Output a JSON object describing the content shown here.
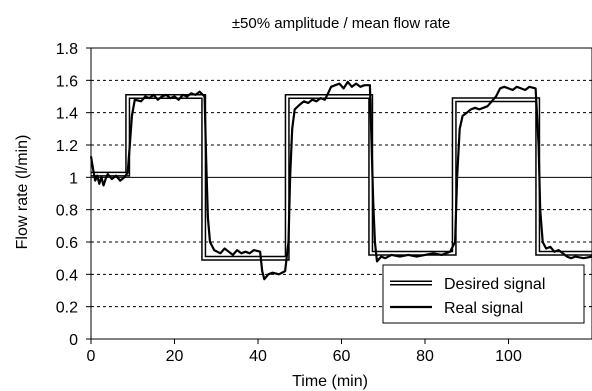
{
  "chart_data": {
    "type": "line",
    "title": "±50% amplitude / mean flow rate",
    "xlabel": "Time (min)",
    "ylabel": "Flow rate (l/min)",
    "xlim": [
      0,
      120
    ],
    "ylim": [
      0,
      1.8
    ],
    "x_ticks": [
      0,
      20,
      40,
      60,
      80,
      100
    ],
    "y_ticks": [
      0,
      0.2,
      0.4,
      0.6,
      0.8,
      1,
      1.2,
      1.4,
      1.6,
      1.8
    ],
    "x_tick_labels": [
      "0",
      "20",
      "40",
      "60",
      "80",
      "100"
    ],
    "y_tick_labels": [
      "0",
      "0.2",
      "0.4",
      "0.6",
      "0.8",
      "1",
      "1.2",
      "1.4",
      "1.6",
      "1.8"
    ],
    "grid": "horizontal dotted",
    "reference_line": 1.0,
    "legend_position": "bottom-right",
    "series": [
      {
        "name": "Desired signal",
        "style": "double-line",
        "color": "#000000",
        "points": [
          [
            0,
            1.02
          ],
          [
            8.8,
            1.02
          ],
          [
            8.8,
            1.5
          ],
          [
            27,
            1.5
          ],
          [
            27,
            0.5
          ],
          [
            47,
            0.5
          ],
          [
            47,
            1.5
          ],
          [
            67,
            1.5
          ],
          [
            67,
            0.53
          ],
          [
            87,
            0.53
          ],
          [
            87,
            1.48
          ],
          [
            107,
            1.48
          ],
          [
            107,
            0.53
          ],
          [
            120,
            0.53
          ]
        ]
      },
      {
        "name": "Real signal",
        "style": "solid",
        "color": "#000000",
        "points": [
          [
            0,
            1.13
          ],
          [
            0.5,
            1.05
          ],
          [
            1,
            0.98
          ],
          [
            1.5,
            1.01
          ],
          [
            2,
            0.96
          ],
          [
            2.5,
            1.0
          ],
          [
            3,
            0.95
          ],
          [
            3.5,
            0.99
          ],
          [
            4,
            1.02
          ],
          [
            5,
            0.99
          ],
          [
            6,
            1.01
          ],
          [
            7,
            0.98
          ],
          [
            8,
            1.0
          ],
          [
            8.8,
            1.03
          ],
          [
            9.3,
            1.2
          ],
          [
            9.8,
            1.38
          ],
          [
            10.5,
            1.48
          ],
          [
            12,
            1.47
          ],
          [
            13,
            1.5
          ],
          [
            14,
            1.49
          ],
          [
            15,
            1.51
          ],
          [
            16,
            1.48
          ],
          [
            17,
            1.5
          ],
          [
            18,
            1.51
          ],
          [
            19,
            1.49
          ],
          [
            20,
            1.5
          ],
          [
            21,
            1.48
          ],
          [
            22,
            1.51
          ],
          [
            23,
            1.5
          ],
          [
            24,
            1.52
          ],
          [
            25,
            1.51
          ],
          [
            26,
            1.53
          ],
          [
            27.2,
            1.5
          ],
          [
            27.6,
            1.1
          ],
          [
            28,
            0.75
          ],
          [
            28.5,
            0.6
          ],
          [
            29.5,
            0.55
          ],
          [
            31,
            0.53
          ],
          [
            32,
            0.56
          ],
          [
            33,
            0.54
          ],
          [
            34,
            0.52
          ],
          [
            35,
            0.55
          ],
          [
            36,
            0.53
          ],
          [
            37,
            0.54
          ],
          [
            38,
            0.53
          ],
          [
            39,
            0.55
          ],
          [
            40.5,
            0.54
          ],
          [
            41,
            0.42
          ],
          [
            41.5,
            0.37
          ],
          [
            42.5,
            0.4
          ],
          [
            43.5,
            0.41
          ],
          [
            45,
            0.4
          ],
          [
            46.5,
            0.42
          ],
          [
            47.3,
            0.6
          ],
          [
            47.7,
            1.0
          ],
          [
            48.2,
            1.3
          ],
          [
            48.8,
            1.42
          ],
          [
            50,
            1.45
          ],
          [
            51,
            1.47
          ],
          [
            52,
            1.46
          ],
          [
            53,
            1.48
          ],
          [
            54,
            1.47
          ],
          [
            55,
            1.49
          ],
          [
            56,
            1.48
          ],
          [
            56.8,
            1.52
          ],
          [
            57.5,
            1.56
          ],
          [
            58.5,
            1.57
          ],
          [
            59.5,
            1.58
          ],
          [
            60.5,
            1.55
          ],
          [
            61.5,
            1.59
          ],
          [
            62.5,
            1.56
          ],
          [
            63.5,
            1.58
          ],
          [
            64.5,
            1.56
          ],
          [
            65.5,
            1.57
          ],
          [
            66.8,
            1.57
          ],
          [
            67.2,
            1.2
          ],
          [
            67.6,
            0.85
          ],
          [
            68,
            0.6
          ],
          [
            68.5,
            0.48
          ],
          [
            69.5,
            0.51
          ],
          [
            70.5,
            0.5
          ],
          [
            72,
            0.52
          ],
          [
            74,
            0.51
          ],
          [
            76,
            0.52
          ],
          [
            78,
            0.51
          ],
          [
            80,
            0.52
          ],
          [
            82,
            0.53
          ],
          [
            84,
            0.52
          ],
          [
            86,
            0.54
          ],
          [
            87.2,
            0.6
          ],
          [
            87.7,
            1.0
          ],
          [
            88.3,
            1.3
          ],
          [
            89,
            1.38
          ],
          [
            90,
            1.4
          ],
          [
            91,
            1.42
          ],
          [
            92,
            1.43
          ],
          [
            93,
            1.42
          ],
          [
            94,
            1.43
          ],
          [
            95,
            1.44
          ],
          [
            96,
            1.47
          ],
          [
            97,
            1.5
          ],
          [
            98,
            1.55
          ],
          [
            99,
            1.56
          ],
          [
            100,
            1.55
          ],
          [
            101,
            1.54
          ],
          [
            102,
            1.56
          ],
          [
            103,
            1.55
          ],
          [
            104,
            1.54
          ],
          [
            105,
            1.56
          ],
          [
            106.5,
            1.55
          ],
          [
            107.2,
            1.2
          ],
          [
            107.6,
            0.8
          ],
          [
            108.2,
            0.6
          ],
          [
            109,
            0.56
          ],
          [
            110,
            0.57
          ],
          [
            111,
            0.54
          ],
          [
            112,
            0.55
          ],
          [
            113,
            0.53
          ],
          [
            114,
            0.51
          ],
          [
            115,
            0.5
          ],
          [
            116,
            0.51
          ],
          [
            118,
            0.5
          ],
          [
            120,
            0.51
          ]
        ]
      }
    ]
  }
}
